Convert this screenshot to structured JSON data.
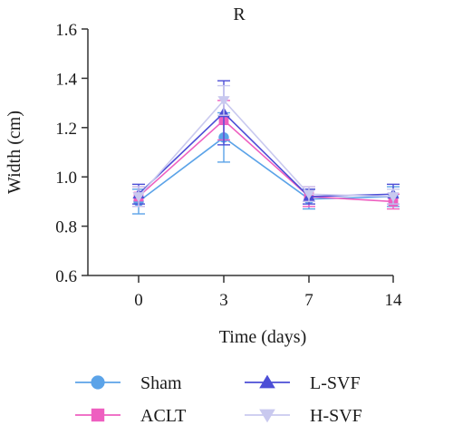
{
  "chart_data": {
    "type": "line",
    "title": "R",
    "xlabel": "Time (days)",
    "ylabel": "Width (cm)",
    "categories": [
      "0",
      "3",
      "7",
      "14"
    ],
    "ylim": [
      0.6,
      1.6
    ],
    "yticks": [
      "0.6",
      "0.8",
      "1.0",
      "1.2",
      "1.4",
      "1.6"
    ],
    "grid": false,
    "legend_position": "bottom",
    "series": [
      {
        "name": "Sham",
        "color": "#5ba3e8",
        "marker": "circle",
        "values": [
          0.9,
          1.16,
          0.91,
          0.92
        ],
        "errors": [
          0.05,
          0.1,
          0.04,
          0.04
        ]
      },
      {
        "name": "ACLT",
        "color": "#ee5fc0",
        "marker": "square",
        "values": [
          0.92,
          1.23,
          0.92,
          0.9
        ],
        "errors": [
          0.04,
          0.08,
          0.04,
          0.03
        ]
      },
      {
        "name": "L-SVF",
        "color": "#4c4ed6",
        "marker": "triangle-up",
        "values": [
          0.93,
          1.26,
          0.92,
          0.93
        ],
        "errors": [
          0.04,
          0.13,
          0.03,
          0.04
        ]
      },
      {
        "name": "H-SVF",
        "color": "#c9c9ef",
        "marker": "triangle-down",
        "values": [
          0.92,
          1.31,
          0.93,
          0.92
        ],
        "errors": [
          0.04,
          0.06,
          0.03,
          0.03
        ]
      }
    ]
  }
}
